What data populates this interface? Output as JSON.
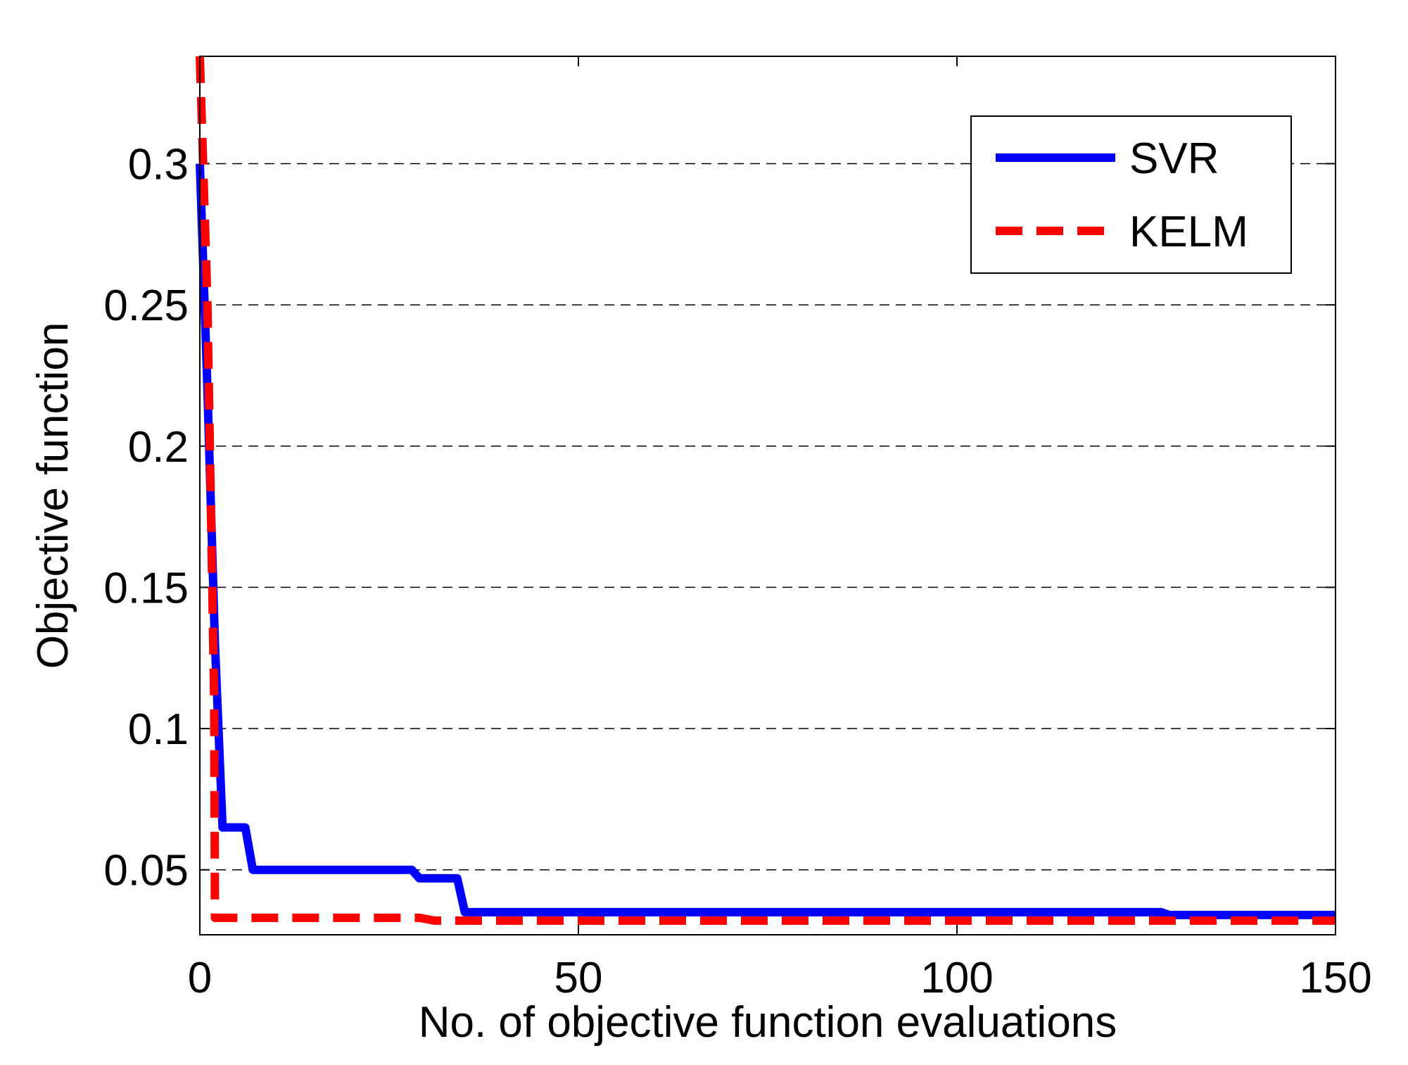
{
  "chart_data": {
    "type": "line",
    "title": "",
    "xlabel": "No. of objective function evaluations",
    "ylabel": "Objective function",
    "xlim": [
      0,
      150
    ],
    "ylim": [
      0.027,
      0.338
    ],
    "xticks": [
      0,
      50,
      100,
      150
    ],
    "xtick_labels": [
      "0",
      "50",
      "100",
      "150"
    ],
    "yticks": [
      0.05,
      0.1,
      0.15,
      0.2,
      0.25,
      0.3
    ],
    "ytick_labels": [
      "0.05",
      "0.1",
      "0.15",
      "0.2",
      "0.25",
      "0.3"
    ],
    "grid": "y-dashed",
    "legend_position": "top-right",
    "series": [
      {
        "name": "SVR",
        "color": "#0000ff",
        "style": "solid",
        "x": [
          0,
          1,
          2,
          3,
          6,
          7,
          28,
          29,
          34,
          35,
          127,
          128,
          150
        ],
        "y": [
          0.3,
          0.22,
          0.13,
          0.065,
          0.065,
          0.05,
          0.05,
          0.047,
          0.047,
          0.035,
          0.035,
          0.034,
          0.034
        ]
      },
      {
        "name": "KELM",
        "color": "#ff0000",
        "style": "dashed",
        "x": [
          0,
          1,
          1.9,
          2,
          29,
          31,
          150
        ],
        "y": [
          0.338,
          0.25,
          0.11,
          0.033,
          0.033,
          0.032,
          0.032
        ]
      }
    ]
  }
}
